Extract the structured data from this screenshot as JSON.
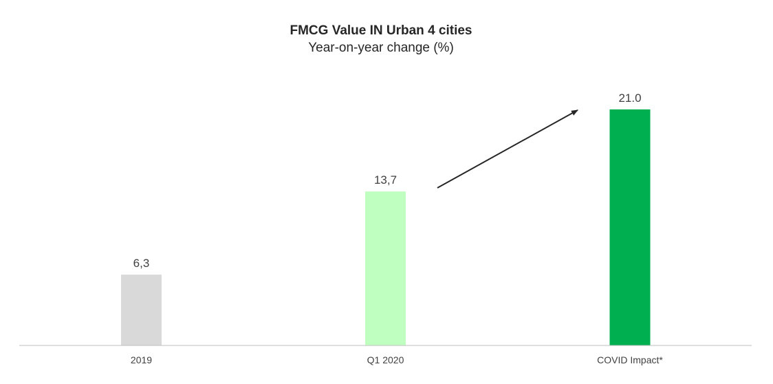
{
  "chart_data": {
    "type": "bar",
    "title": "FMCG Value IN Urban 4 cities",
    "subtitle": "Year-on-year change (%)",
    "xlabel": "",
    "ylabel": "",
    "categories": [
      "2019",
      "Q1 2020",
      "COVID Impact*"
    ],
    "values": [
      6.3,
      13.7,
      21.0
    ],
    "data_labels": [
      "6,3",
      "13,7",
      "21.0"
    ],
    "colors": [
      "#d9d9d9",
      "#bfffbf",
      "#00b050"
    ],
    "ylim": [
      0,
      21.0
    ],
    "grid": false,
    "legend": "none",
    "annotation": "arrow from Q1 2020 bar toward COVID Impact* bar"
  }
}
